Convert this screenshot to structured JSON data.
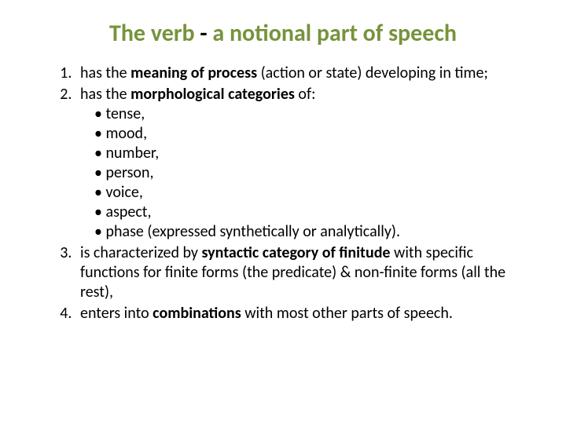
{
  "title_prefix": "The verb ",
  "title_dash": "- ",
  "title_suffix": "a notional part of speech",
  "item1_pre": "has the ",
  "item1_bold": "meaning of process ",
  "item1_post": "(action or state) developing in time;",
  "item2_pre": "has the ",
  "item2_bold": "morphological categories ",
  "item2_post": "of:",
  "sub1": "tense,",
  "sub2": "mood,",
  "sub3": "number,",
  "sub4": "person,",
  "sub5": "voice,",
  "sub6": "aspect,",
  "sub7": "phase (expressed synthetically or analytically).",
  "item3_pre": "is characterized by ",
  "item3_bold": "syntactic category of finitude ",
  "item3_post": "with specific functions for finite forms (the predicate) & non-finite forms (all the rest),",
  "item4_pre": "enters into ",
  "item4_bold": "combinations",
  "item4_post": " with most other parts of speech.",
  "colors": {
    "olive": "#77933c",
    "text": "#000000",
    "background": "#ffffff"
  },
  "fontsize": {
    "title": 30,
    "body": 20
  }
}
